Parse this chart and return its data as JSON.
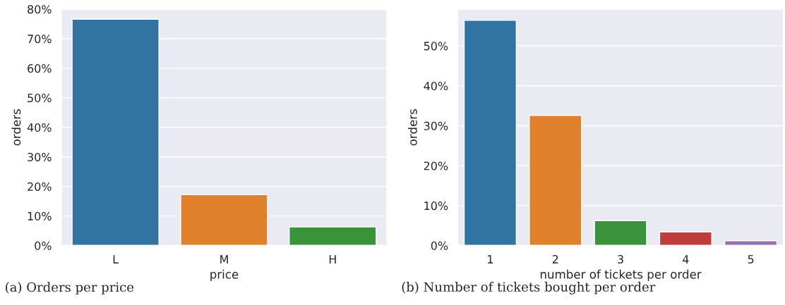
{
  "chart_data": [
    {
      "type": "bar",
      "categories": [
        "L",
        "M",
        "H"
      ],
      "values": [
        76.6,
        17.2,
        6.3
      ],
      "colors": [
        "#3274a1",
        "#e1812c",
        "#3a923a"
      ],
      "xlabel": "price",
      "ylabel": "orders",
      "ylim": [
        0,
        80
      ],
      "yticks": [
        {
          "value": 0,
          "label": "0%"
        },
        {
          "value": 10,
          "label": "10%"
        },
        {
          "value": 20,
          "label": "20%"
        },
        {
          "value": 30,
          "label": "30%"
        },
        {
          "value": 40,
          "label": "40%"
        },
        {
          "value": 50,
          "label": "50%"
        },
        {
          "value": 60,
          "label": "60%"
        },
        {
          "value": 70,
          "label": "70%"
        },
        {
          "value": 80,
          "label": "80%"
        }
      ],
      "grid": "y",
      "annotations": [
        "(a) Orders per price"
      ]
    },
    {
      "type": "bar",
      "categories": [
        "1",
        "2",
        "3",
        "4",
        "5"
      ],
      "values": [
        56.4,
        32.6,
        6.2,
        3.4,
        1.2
      ],
      "colors": [
        "#3274a1",
        "#e1812c",
        "#3a923a",
        "#c03d3e",
        "#9372b2"
      ],
      "xlabel": "number of tickets per order",
      "ylabel": "orders",
      "ylim": [
        0,
        59.2
      ],
      "yticks": [
        {
          "value": 0,
          "label": "0%"
        },
        {
          "value": 10,
          "label": "10%"
        },
        {
          "value": 20,
          "label": "20%"
        },
        {
          "value": 30,
          "label": "30%"
        },
        {
          "value": 40,
          "label": "40%"
        },
        {
          "value": 50,
          "label": "50%"
        }
      ],
      "grid": "y",
      "annotations": [
        "(b) Number of tickets bought per order"
      ]
    }
  ]
}
